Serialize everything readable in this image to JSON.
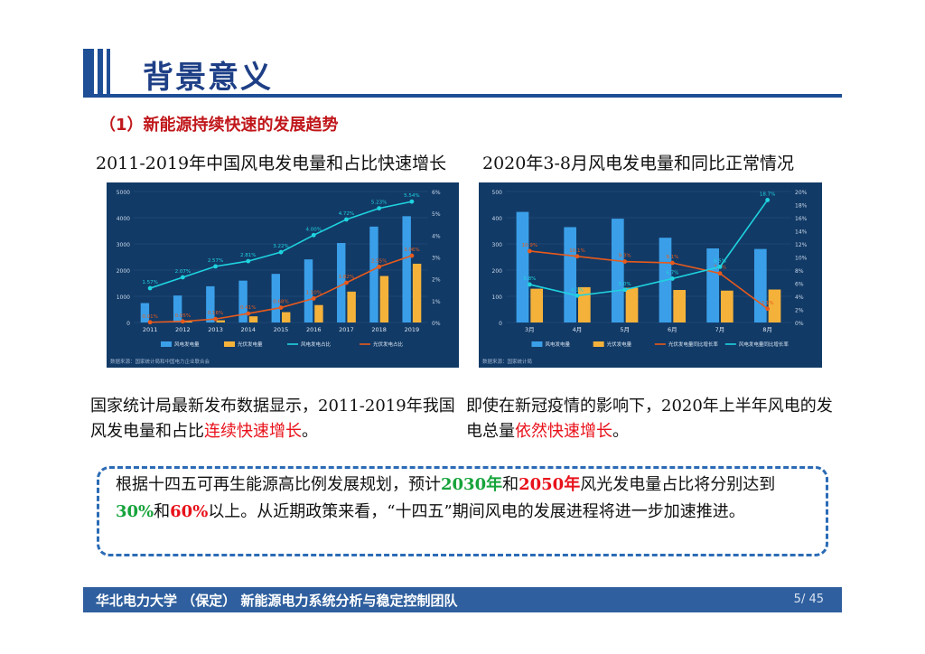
{
  "header": {
    "title": "背景意义"
  },
  "section": {
    "subtitle": "（1）新能源持续快速的发展趋势"
  },
  "charts": {
    "left_title": "2011-2019年中国风电发电量和占比快速增长",
    "right_title": "2020年3-8月风电发电量和同比正常情况"
  },
  "chart_data": [
    {
      "type": "bar",
      "x": [
        "2011",
        "2012",
        "2013",
        "2014",
        "2015",
        "2016",
        "2017",
        "2018",
        "2019"
      ],
      "ylim": [
        0,
        5000
      ],
      "y2lim": [
        0,
        6
      ],
      "y_ticks": [
        "0",
        "1000",
        "2000",
        "3000",
        "4000",
        "5000"
      ],
      "y2_ticks": [
        "0%",
        "1%",
        "2%",
        "3%",
        "4%",
        "5%",
        "6%"
      ],
      "series": [
        {
          "name": "风电发电量",
          "kind": "bar",
          "values": [
            741,
            1030,
            1383,
            1598,
            1856,
            2409,
            3034,
            3660,
            4057
          ]
        },
        {
          "name": "光伏发电量",
          "kind": "bar",
          "values": [
            6,
            36,
            84,
            235,
            395,
            665,
            1178,
            1775,
            2243
          ]
        },
        {
          "name": "风电发电占比",
          "kind": "line",
          "values": [
            1.57,
            2.07,
            2.57,
            2.81,
            3.22,
            4.0,
            4.72,
            5.23,
            5.54
          ],
          "labels": [
            "1.57%",
            "2.07%",
            "2.57%",
            "2.81%",
            "3.22%",
            "4.00%",
            "4.72%",
            "5.23%",
            "5.54%"
          ]
        },
        {
          "name": "光伏发电占比",
          "kind": "line",
          "values": [
            0.01,
            0.05,
            0.16,
            0.41,
            0.68,
            1.1,
            1.82,
            2.55,
            3.06
          ],
          "labels": [
            "0.01%",
            "0.05%",
            "0.16%",
            "0.41%",
            "0.68%",
            "1.10%",
            "1.82%",
            "2.55%",
            "3.06%"
          ]
        }
      ],
      "source": "数据来源：国家统计局和中国电力企业联合会"
    },
    {
      "type": "bar",
      "x": [
        "3月",
        "4月",
        "5月",
        "6月",
        "7月",
        "8月"
      ],
      "ylim": [
        0,
        500
      ],
      "y2lim": [
        0,
        20
      ],
      "y_ticks": [
        "0",
        "100",
        "200",
        "300",
        "400",
        "500"
      ],
      "y2_ticks": [
        "0%",
        "2%",
        "4%",
        "6%",
        "8%",
        "10%",
        "12%",
        "14%",
        "16%",
        "18%",
        "20%"
      ],
      "series": [
        {
          "name": "风电发电量",
          "kind": "bar",
          "values": [
            422.2,
            364.0,
            396.2,
            323.6,
            282.7,
            280.7
          ]
        },
        {
          "name": "光伏发电量",
          "kind": "bar",
          "values": [
            128.9,
            134.8,
            132.6,
            124.1,
            121.6,
            125.8
          ]
        },
        {
          "name": "光伏发电量同比增长率",
          "kind": "line",
          "values": [
            10.9,
            10.1,
            9.3,
            9.1,
            7.5,
            2.1
          ],
          "labels": [
            "10.9%",
            "10.1%",
            "9.3%",
            "9.1%",
            "7.5%",
            "2.1%"
          ]
        },
        {
          "name": "风电发电量同比增长率",
          "kind": "line",
          "values": [
            5.8,
            4.1,
            5.0,
            6.7,
            8.5,
            18.7
          ],
          "labels": [
            "5.8%",
            "4.1%",
            "5.0%",
            "6.7%",
            "8.5%",
            "18.7%"
          ]
        }
      ],
      "source": "数据来源：国家统计局"
    }
  ],
  "paragraphs": {
    "left_part1": "国家统计局最新发布数据显示，2011-2019年我国风发电量和占比",
    "left_highlight": "连续快速增长",
    "left_end": "。",
    "right_part1": "即使在新冠疫情的影响下，2020年上半年风电的发电总量",
    "right_highlight": "依然快速增长",
    "right_end": "。"
  },
  "note": {
    "t1": "根据十四五可再生能源高比例发展规划，预计",
    "y2030": "2030年",
    "t2": "和",
    "y2050": "2050年",
    "t3": "风光发电量占比将分别达到",
    "p30": "30%",
    "t4": "和",
    "p60": "60%",
    "t5": "以上。从近期政策来看，“十四五”期间风电的发展进程将进一步加速推进。"
  },
  "footer": {
    "text": "华北电力大学 （保定） 新能源电力系统分析与稳定控制团队",
    "page": "5/ 45"
  },
  "colors": {
    "accent": "#1e4e96",
    "wind_bar": "#3a9fe8",
    "pv_bar": "#f5b23a",
    "wind_line": "#1fd3e0",
    "pv_line": "#e85a1c",
    "highlight_red": "#e8111a",
    "highlight_green": "#16a33b"
  }
}
